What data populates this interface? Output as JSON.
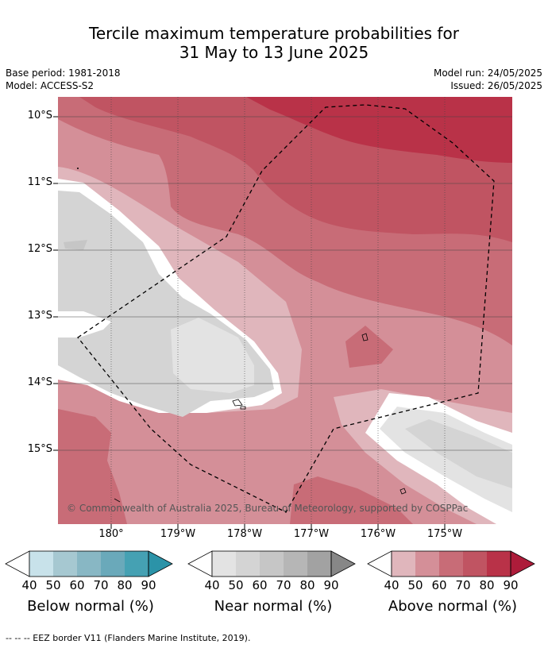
{
  "title_line1": "Tercile maximum temperature probabilities for",
  "title_line2": "31 May to 13 June 2025",
  "base_period": "Base period: 1981-2018",
  "model": "Model: ACCESS-S2",
  "model_run": "Model run: 24/05/2025",
  "issued": "Issued: 26/05/2025",
  "copyright": "© Commonwealth of Australia 2025, Bureau of Meteorology, supported by COSPPac",
  "lat_labels": [
    "10°S",
    "11°S",
    "12°S",
    "13°S",
    "14°S",
    "15°S"
  ],
  "lon_labels": [
    "180°",
    "179°W",
    "178°W",
    "177°W",
    "176°W",
    "175°W"
  ],
  "colorbars": [
    {
      "title": "Below normal (%)",
      "ticks": [
        "40",
        "50",
        "60",
        "70",
        "80",
        "90"
      ],
      "colors": [
        "#c8e2ea",
        "#a6c8d1",
        "#88b7c4",
        "#6aa9ba",
        "#45a1b3",
        "#2b93a8"
      ]
    },
    {
      "title": "Near normal (%)",
      "ticks": [
        "40",
        "50",
        "60",
        "70",
        "80",
        "90"
      ],
      "colors": [
        "#e3e3e3",
        "#d4d4d4",
        "#c6c6c6",
        "#b6b6b6",
        "#a2a2a2",
        "#878787"
      ]
    },
    {
      "title": "Above normal (%)",
      "ticks": [
        "40",
        "50",
        "60",
        "70",
        "80",
        "90"
      ],
      "colors": [
        "#e0b6bc",
        "#d48f98",
        "#c86c77",
        "#c05462",
        "#b93248",
        "#ad1c3a"
      ]
    }
  ],
  "footer": "--  --  -- EEZ border V11 (Flanders Marine Institute, 2019)."
}
